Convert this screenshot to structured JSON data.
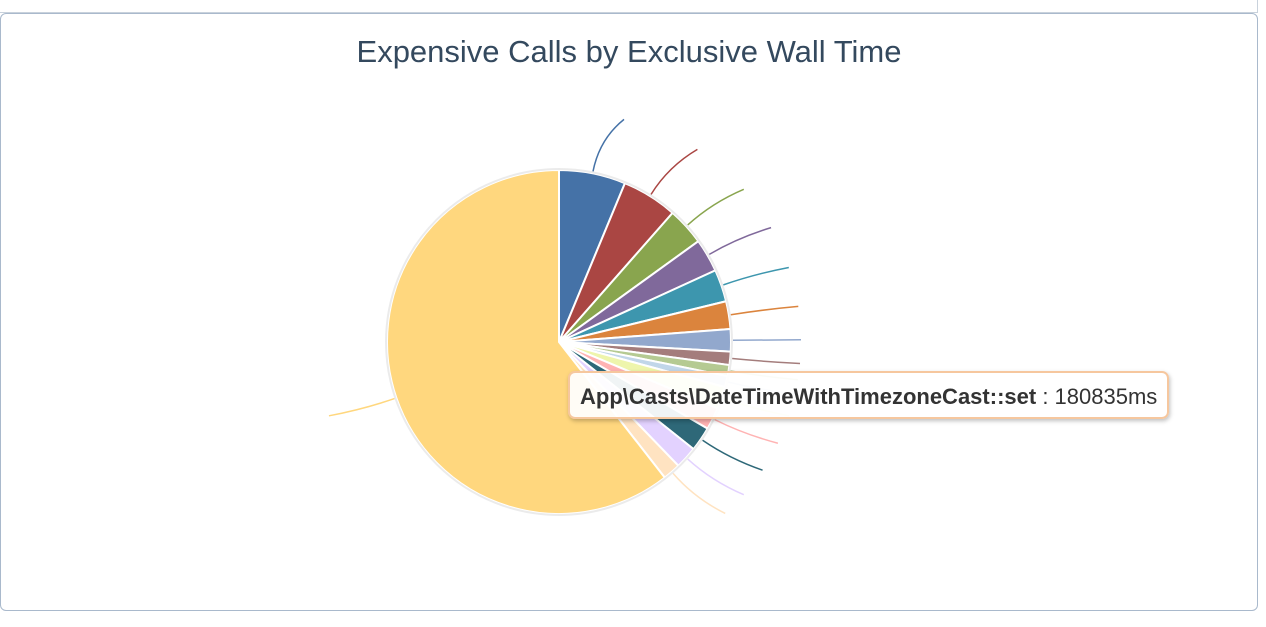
{
  "chart_data": {
    "type": "pie",
    "title": "Expensive Calls by Exclusive Wall Time",
    "slices": [
      {
        "value": 6.0,
        "color": "#4572a7"
      },
      {
        "value": 5.0,
        "color": "#aa4643"
      },
      {
        "value": 3.4,
        "color": "#89a54e"
      },
      {
        "value": 3.0,
        "color": "#80699b"
      },
      {
        "value": 2.9,
        "color": "#3d96ae"
      },
      {
        "value": 2.5,
        "color": "#db843d"
      },
      {
        "value": 2.0,
        "color": "#92a8cd"
      },
      {
        "value": 1.2,
        "color": "#a47d7c"
      },
      {
        "value": 1.0,
        "color": "#b5ca92"
      },
      {
        "value": 1.0,
        "color": "#c1d6e9"
      },
      {
        "value": 2.0,
        "color": "#eef5ac"
      },
      {
        "value": 2.0,
        "color": "#ffb3b3"
      },
      {
        "value": 2.2,
        "color": "#2e6878"
      },
      {
        "value": 2.0,
        "color": "#e3d2ff"
      },
      {
        "value": 1.6,
        "color": "#ffe3c1"
      },
      {
        "value": 58.0,
        "color": "#ffd77e"
      }
    ],
    "tooltip": {
      "label": "App\\Casts\\DateTimeWithTimezoneCast::set",
      "separator": " : ",
      "value": "180835ms"
    }
  }
}
